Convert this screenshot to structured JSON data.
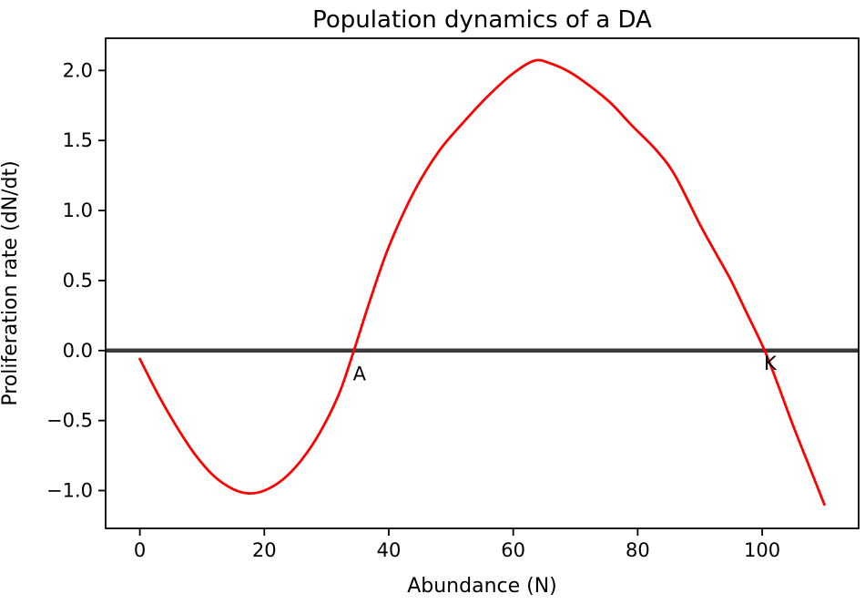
{
  "figure": {
    "background": "#ffffff",
    "frame_color": "#000000"
  },
  "chart_data": {
    "type": "line",
    "title": "Population dynamics of a DA",
    "xlabel": "Abundance (N)",
    "ylabel": "Proliferation rate (dN/dt)",
    "xlim": [
      -5.5,
      115.5
    ],
    "ylim": [
      -1.27,
      2.23
    ],
    "grid": false,
    "legend_position": "none",
    "x_ticks": [
      0,
      20,
      40,
      60,
      80,
      100
    ],
    "x_tick_labels": [
      "0",
      "20",
      "40",
      "60",
      "80",
      "100"
    ],
    "y_ticks": [
      2.0,
      1.5,
      1.0,
      0.5,
      0.0,
      -0.5,
      -1.0
    ],
    "y_tick_labels": [
      "2.0",
      "1.5",
      "1.0",
      "0.5",
      "0.0",
      "−0.5",
      "−1.0"
    ],
    "zero_line": {
      "value": 0.0,
      "color": "#3a3a3a"
    },
    "series": [
      {
        "name": "proliferation-rate-curve",
        "color": "#ff0000",
        "x": [
          0,
          3,
          6,
          9,
          12,
          15,
          17.5,
          20,
          23,
          26,
          29,
          32,
          34.4,
          37,
          40,
          44,
          48,
          52,
          56,
          60,
          63.4,
          66,
          69,
          72,
          75.6,
          79,
          83,
          86,
          90,
          93,
          95,
          97.5,
          100.4,
          102.5,
          105,
          107.5,
          110
        ],
        "y": [
          -0.06,
          -0.32,
          -0.55,
          -0.75,
          -0.9,
          -0.99,
          -1.02,
          -1.0,
          -0.92,
          -0.78,
          -0.58,
          -0.31,
          0.0,
          0.36,
          0.74,
          1.13,
          1.42,
          1.63,
          1.82,
          1.98,
          2.07,
          2.05,
          1.99,
          1.9,
          1.77,
          1.61,
          1.43,
          1.25,
          0.9,
          0.66,
          0.5,
          0.27,
          0.0,
          -0.24,
          -0.54,
          -0.82,
          -1.1
        ]
      }
    ],
    "annotations": [
      {
        "text": "A",
        "x": 35.3,
        "y": -0.175
      },
      {
        "text": "K",
        "x": 101.3,
        "y": -0.1
      }
    ]
  }
}
